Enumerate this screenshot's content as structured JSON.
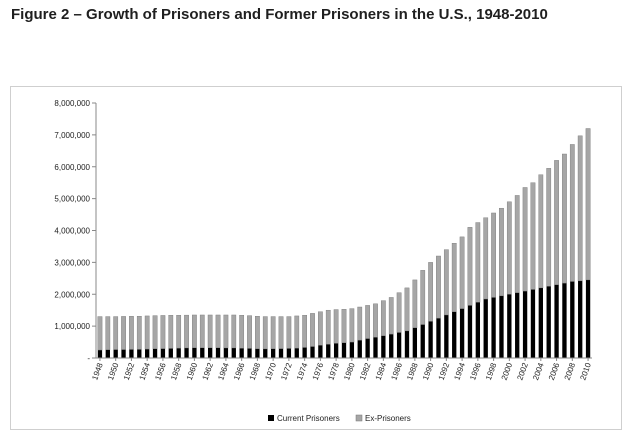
{
  "figure": {
    "title": "Figure 2 – Growth of Prisoners and Former Prisoners in the U.S., 1948-2010"
  },
  "colors": {
    "current": "#000000",
    "ex": "#a6a6a6",
    "frame": "#cfcfcf",
    "axis": "#888888"
  },
  "chart_data": {
    "type": "bar",
    "stacked": true,
    "title": "",
    "xlabel": "",
    "ylabel": "",
    "ylim": [
      0,
      8000000
    ],
    "y_ticks": [
      0,
      1000000,
      2000000,
      3000000,
      4000000,
      5000000,
      6000000,
      7000000,
      8000000
    ],
    "y_tick_labels": [
      "-",
      "1,000,000",
      "2,000,000",
      "3,000,000",
      "4,000,000",
      "5,000,000",
      "6,000,000",
      "7,000,000",
      "8,000,000"
    ],
    "grid": false,
    "legend_position": "bottom",
    "categories": [
      "1948",
      "1949",
      "1950",
      "1951",
      "1952",
      "1953",
      "1954",
      "1955",
      "1956",
      "1957",
      "1958",
      "1959",
      "1960",
      "1961",
      "1962",
      "1963",
      "1964",
      "1965",
      "1966",
      "1967",
      "1968",
      "1969",
      "1970",
      "1971",
      "1972",
      "1973",
      "1974",
      "1975",
      "1976",
      "1977",
      "1978",
      "1979",
      "1980",
      "1981",
      "1982",
      "1983",
      "1984",
      "1985",
      "1986",
      "1987",
      "1988",
      "1989",
      "1990",
      "1991",
      "1992",
      "1993",
      "1994",
      "1995",
      "1996",
      "1997",
      "1998",
      "1999",
      "2000",
      "2001",
      "2002",
      "2003",
      "2004",
      "2005",
      "2006",
      "2007",
      "2008",
      "2009",
      "2010"
    ],
    "x_tick_labels": [
      "1948",
      "1950",
      "1952",
      "1954",
      "1956",
      "1958",
      "1960",
      "1962",
      "1964",
      "1966",
      "1968",
      "1970",
      "1972",
      "1974",
      "1976",
      "1978",
      "1980",
      "1982",
      "1984",
      "1986",
      "1988",
      "1990",
      "1992",
      "1994",
      "1996",
      "1998",
      "2000",
      "2002",
      "2004",
      "2006",
      "2008",
      "2010"
    ],
    "series": [
      {
        "name": "Current Prisoners",
        "color": "#000000",
        "values": [
          250000,
          260000,
          265000,
          265000,
          268000,
          270000,
          280000,
          290000,
          295000,
          300000,
          310000,
          315000,
          320000,
          320000,
          320000,
          320000,
          315000,
          315000,
          305000,
          300000,
          290000,
          285000,
          290000,
          295000,
          300000,
          310000,
          330000,
          360000,
          400000,
          430000,
          460000,
          480000,
          500000,
          560000,
          610000,
          650000,
          700000,
          750000,
          800000,
          850000,
          950000,
          1050000,
          1150000,
          1250000,
          1350000,
          1450000,
          1550000,
          1650000,
          1750000,
          1850000,
          1900000,
          1950000,
          2000000,
          2050000,
          2100000,
          2150000,
          2200000,
          2250000,
          2300000,
          2350000,
          2400000,
          2420000,
          2450000
        ]
      },
      {
        "name": "Ex-Prisoners",
        "color": "#a6a6a6",
        "values": [
          1050000,
          1040000,
          1035000,
          1040000,
          1040000,
          1040000,
          1040000,
          1040000,
          1040000,
          1040000,
          1030000,
          1030000,
          1030000,
          1030000,
          1030000,
          1030000,
          1035000,
          1035000,
          1035000,
          1030000,
          1020000,
          1015000,
          1010000,
          1005000,
          1000000,
          1010000,
          1010000,
          1040000,
          1050000,
          1070000,
          1060000,
          1050000,
          1050000,
          1040000,
          1040000,
          1050000,
          1100000,
          1150000,
          1250000,
          1350000,
          1500000,
          1700000,
          1850000,
          1950000,
          2050000,
          2150000,
          2250000,
          2450000,
          2500000,
          2550000,
          2650000,
          2750000,
          2900000,
          3050000,
          3250000,
          3350000,
          3550000,
          3700000,
          3900000,
          4050000,
          4300000,
          4550000,
          4750000
        ]
      }
    ]
  }
}
